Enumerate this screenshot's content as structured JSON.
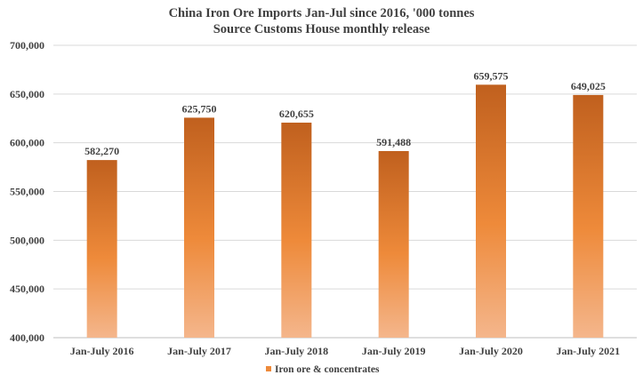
{
  "chart_data": {
    "type": "bar",
    "title": "China Iron Ore  Imports Jan-Jul since 2016, '000 tonnes",
    "subtitle": "Source Customs House monthly release",
    "categories": [
      "Jan-July 2016",
      "Jan-July 2017",
      "Jan-July 2018",
      "Jan-July 2019",
      "Jan-July 2020",
      "Jan-July 2021"
    ],
    "series": [
      {
        "name": "Iron ore & concentrates",
        "values": [
          582270,
          625750,
          620655,
          591488,
          659575,
          649025
        ]
      }
    ],
    "data_labels": [
      "582,270",
      "625,750",
      "620,655",
      "591,488",
      "659,575",
      "649,025"
    ],
    "ylim": [
      400000,
      700000
    ],
    "yticks": [
      400000,
      450000,
      500000,
      550000,
      600000,
      650000,
      700000
    ],
    "ytick_labels": [
      "400,000",
      "450,000",
      "500,000",
      "550,000",
      "600,000",
      "650,000",
      "700,000"
    ],
    "grid": true,
    "legend": "bottom",
    "colors": {
      "bar_top": "#c0601e",
      "bar_mid": "#ee8a3a",
      "bar_bottom": "#f4b68c",
      "grid": "#d9d9d9"
    }
  }
}
